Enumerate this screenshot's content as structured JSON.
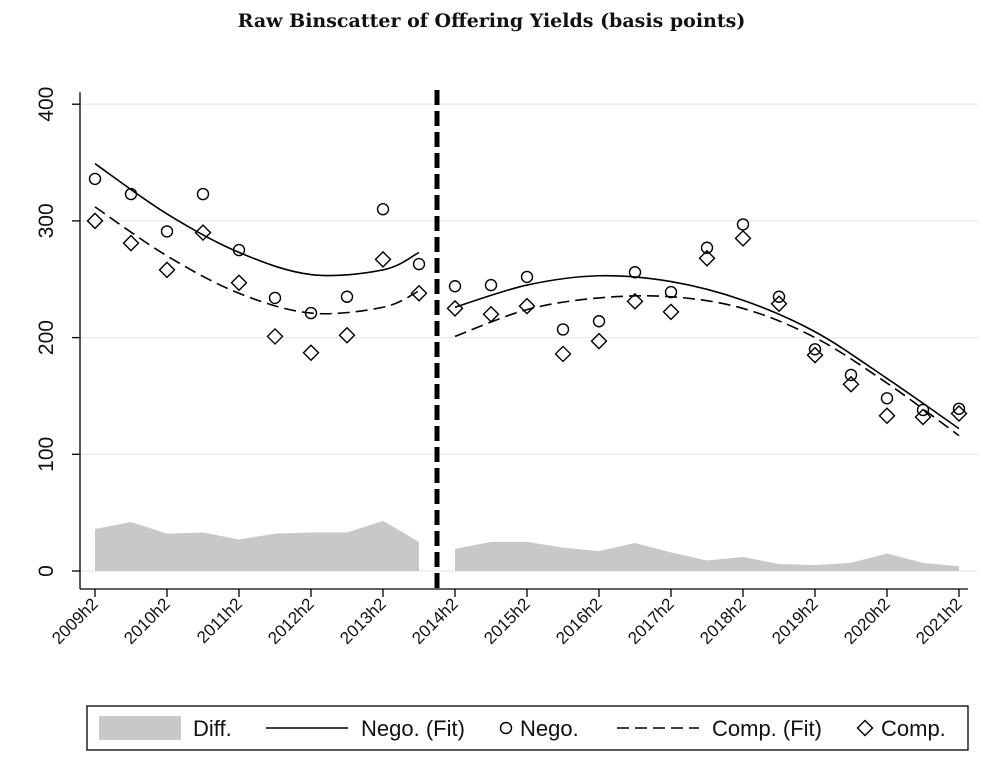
{
  "chart_data": {
    "type": "scatter",
    "title": "Raw Binscatter of Offering Yields (basis points)",
    "xlabel": "",
    "ylabel": "",
    "ylim": [
      0,
      400
    ],
    "yticks": [
      0,
      100,
      200,
      300,
      400
    ],
    "x_tick_labels": [
      "2009h2",
      "2010h2",
      "2011h2",
      "2012h2",
      "2013h2",
      "2014h2",
      "2015h2",
      "2016h2",
      "2017h2",
      "2018h2",
      "2019h2",
      "2020h2",
      "2021h2"
    ],
    "break_at": "2014h1",
    "grid": true,
    "legend_position": "bottom",
    "x": [
      "2009h2",
      "2010h1",
      "2010h2",
      "2011h1",
      "2011h2",
      "2012h1",
      "2012h2",
      "2013h1",
      "2013h2",
      "2014h1",
      "2014h2",
      "2015h1",
      "2015h2",
      "2016h1",
      "2016h2",
      "2017h1",
      "2017h2",
      "2018h1",
      "2018h2",
      "2019h1",
      "2019h2",
      "2020h1",
      "2020h2",
      "2021h1",
      "2021h2"
    ],
    "series": [
      {
        "name": "Nego.",
        "kind": "scatter",
        "marker": "circle",
        "values": [
          336,
          323,
          291,
          323,
          275,
          234,
          221,
          235,
          310,
          263,
          244,
          245,
          252,
          207,
          214,
          256,
          239,
          277,
          297,
          235,
          190,
          168,
          148,
          138,
          139
        ]
      },
      {
        "name": "Comp.",
        "kind": "scatter",
        "marker": "diamond",
        "values": [
          300,
          281,
          258,
          290,
          247,
          201,
          187,
          202,
          267,
          238,
          225,
          220,
          227,
          186,
          197,
          231,
          222,
          268,
          285,
          229,
          185,
          160,
          133,
          132,
          135
        ]
      },
      {
        "name": "Nego. (Fit)",
        "kind": "line",
        "style": "solid",
        "segments": [
          {
            "x": [
              "2009h2",
              "2010h2",
              "2011h2",
              "2012h2",
              "2013h2",
              "2014h1"
            ],
            "values": [
              349,
              306,
              273,
              254,
              258,
              273
            ]
          },
          {
            "x": [
              "2014h2",
              "2015h2",
              "2016h2",
              "2017h2",
              "2018h2",
              "2019h2",
              "2020h2",
              "2021h2"
            ],
            "values": [
              226,
              245,
              253,
              248,
              232,
              205,
              165,
              122
            ]
          }
        ]
      },
      {
        "name": "Comp. (Fit)",
        "kind": "line",
        "style": "dashed",
        "segments": [
          {
            "x": [
              "2009h2",
              "2010h2",
              "2011h2",
              "2012h2",
              "2013h2",
              "2014h1"
            ],
            "values": [
              312,
              270,
              238,
              221,
              226,
              240
            ]
          },
          {
            "x": [
              "2014h2",
              "2015h2",
              "2016h2",
              "2017h2",
              "2018h2",
              "2019h2",
              "2020h2",
              "2021h2"
            ],
            "values": [
              201,
              224,
              234,
              235,
              225,
              200,
              161,
              116
            ]
          }
        ]
      },
      {
        "name": "Diff.",
        "kind": "area",
        "color": "#c8c8c8",
        "segments": [
          {
            "x": [
              "2009h2",
              "2010h1",
              "2010h2",
              "2011h1",
              "2011h2",
              "2012h1",
              "2012h2",
              "2013h1",
              "2013h2",
              "2014h1"
            ],
            "values": [
              36,
              42,
              32,
              33,
              27,
              32,
              33,
              33,
              43,
              25
            ]
          },
          {
            "x": [
              "2014h2",
              "2015h1",
              "2015h2",
              "2016h1",
              "2016h2",
              "2017h1",
              "2017h2",
              "2018h1",
              "2018h2",
              "2019h1",
              "2019h2",
              "2020h1",
              "2020h2",
              "2021h1",
              "2021h2"
            ],
            "values": [
              19,
              25,
              25,
              20,
              17,
              24,
              16,
              9,
              12,
              6,
              5,
              7,
              15,
              7,
              4
            ]
          }
        ]
      }
    ],
    "legend": [
      "Diff.",
      "Nego. (Fit)",
      "Nego.",
      "Comp. (Fit)",
      "Comp."
    ]
  }
}
